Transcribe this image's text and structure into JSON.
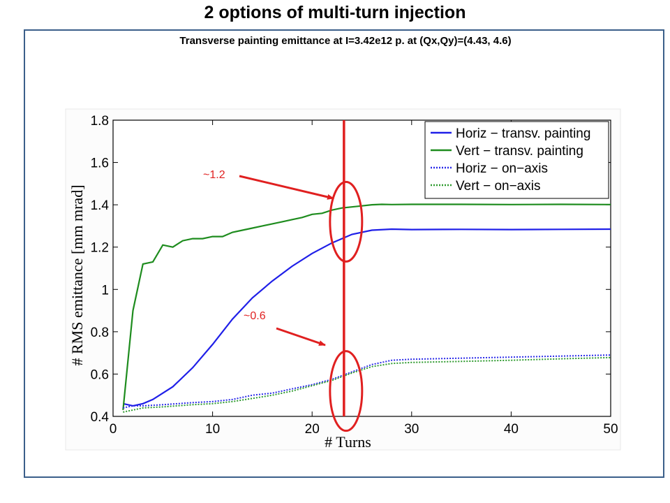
{
  "slide": {
    "title": "2 options of multi-turn injection",
    "subtitle": "Transverse painting emittance at I=3.42e12 p. at (Qx,Qy)=(4.43, 4.6)"
  },
  "colors": {
    "frame": "#3b5f8a",
    "annotation": "#e02020"
  },
  "chart_data": {
    "type": "line",
    "xlabel": "# Turns",
    "ylabel": "# RMS emittance [mm mrad]",
    "xlim": [
      0,
      50
    ],
    "ylim": [
      0.4,
      1.8
    ],
    "xticks": [
      "0",
      "10",
      "20",
      "30",
      "40",
      "50"
    ],
    "yticks": [
      "0.4",
      "0.6",
      "0.8",
      "1",
      "1.2",
      "1.4",
      "1.6",
      "1.8"
    ],
    "grid": false,
    "legend": "top-right",
    "series": [
      {
        "name": "Horiz − transv. painting",
        "color": "#1f1fe8",
        "style": "solid",
        "x": [
          1,
          2,
          3,
          4,
          6,
          8,
          10,
          12,
          14,
          16,
          18,
          20,
          22,
          24,
          26,
          28,
          30,
          35,
          40,
          45,
          50
        ],
        "y": [
          0.46,
          0.45,
          0.46,
          0.48,
          0.54,
          0.63,
          0.74,
          0.86,
          0.96,
          1.04,
          1.11,
          1.17,
          1.22,
          1.26,
          1.28,
          1.285,
          1.283,
          1.284,
          1.283,
          1.284,
          1.285
        ]
      },
      {
        "name": "Vert − transv. painting",
        "color": "#1e8c1e",
        "style": "solid",
        "x": [
          1,
          2,
          3,
          4,
          5,
          6,
          7,
          8,
          9,
          10,
          11,
          12,
          13,
          14,
          15,
          16,
          17,
          18,
          19,
          20,
          21,
          22,
          23,
          24,
          25,
          26,
          27,
          28,
          30,
          35,
          40,
          45,
          50
        ],
        "y": [
          0.43,
          0.9,
          1.12,
          1.13,
          1.21,
          1.2,
          1.23,
          1.24,
          1.24,
          1.25,
          1.25,
          1.27,
          1.28,
          1.29,
          1.3,
          1.31,
          1.32,
          1.33,
          1.34,
          1.355,
          1.36,
          1.375,
          1.385,
          1.39,
          1.395,
          1.4,
          1.402,
          1.401,
          1.402,
          1.402,
          1.401,
          1.402,
          1.401
        ]
      },
      {
        "name": "Horiz − on−axis",
        "color": "#2a2ae8",
        "style": "dotted",
        "x": [
          1,
          2,
          3,
          5,
          8,
          10,
          12,
          14,
          16,
          18,
          20,
          22,
          24,
          26,
          28,
          30,
          35,
          40,
          45,
          50
        ],
        "y": [
          0.44,
          0.45,
          0.45,
          0.455,
          0.465,
          0.47,
          0.48,
          0.5,
          0.51,
          0.53,
          0.55,
          0.575,
          0.61,
          0.645,
          0.665,
          0.67,
          0.675,
          0.68,
          0.685,
          0.69
        ]
      },
      {
        "name": "Vert − on−axis",
        "color": "#2e9a2e",
        "style": "dotted",
        "x": [
          1,
          2,
          3,
          5,
          8,
          10,
          12,
          14,
          16,
          18,
          20,
          22,
          24,
          26,
          28,
          30,
          35,
          40,
          45,
          50
        ],
        "y": [
          0.42,
          0.43,
          0.44,
          0.445,
          0.455,
          0.46,
          0.47,
          0.485,
          0.5,
          0.52,
          0.545,
          0.57,
          0.605,
          0.635,
          0.65,
          0.655,
          0.66,
          0.665,
          0.672,
          0.678
        ]
      }
    ],
    "marker_line_x": 23.2,
    "annotations": [
      {
        "text": "~1.2",
        "target_x": 23,
        "target_y": 1.39
      },
      {
        "text": "~0.6",
        "target_x": 23,
        "target_y": 0.73
      }
    ]
  }
}
